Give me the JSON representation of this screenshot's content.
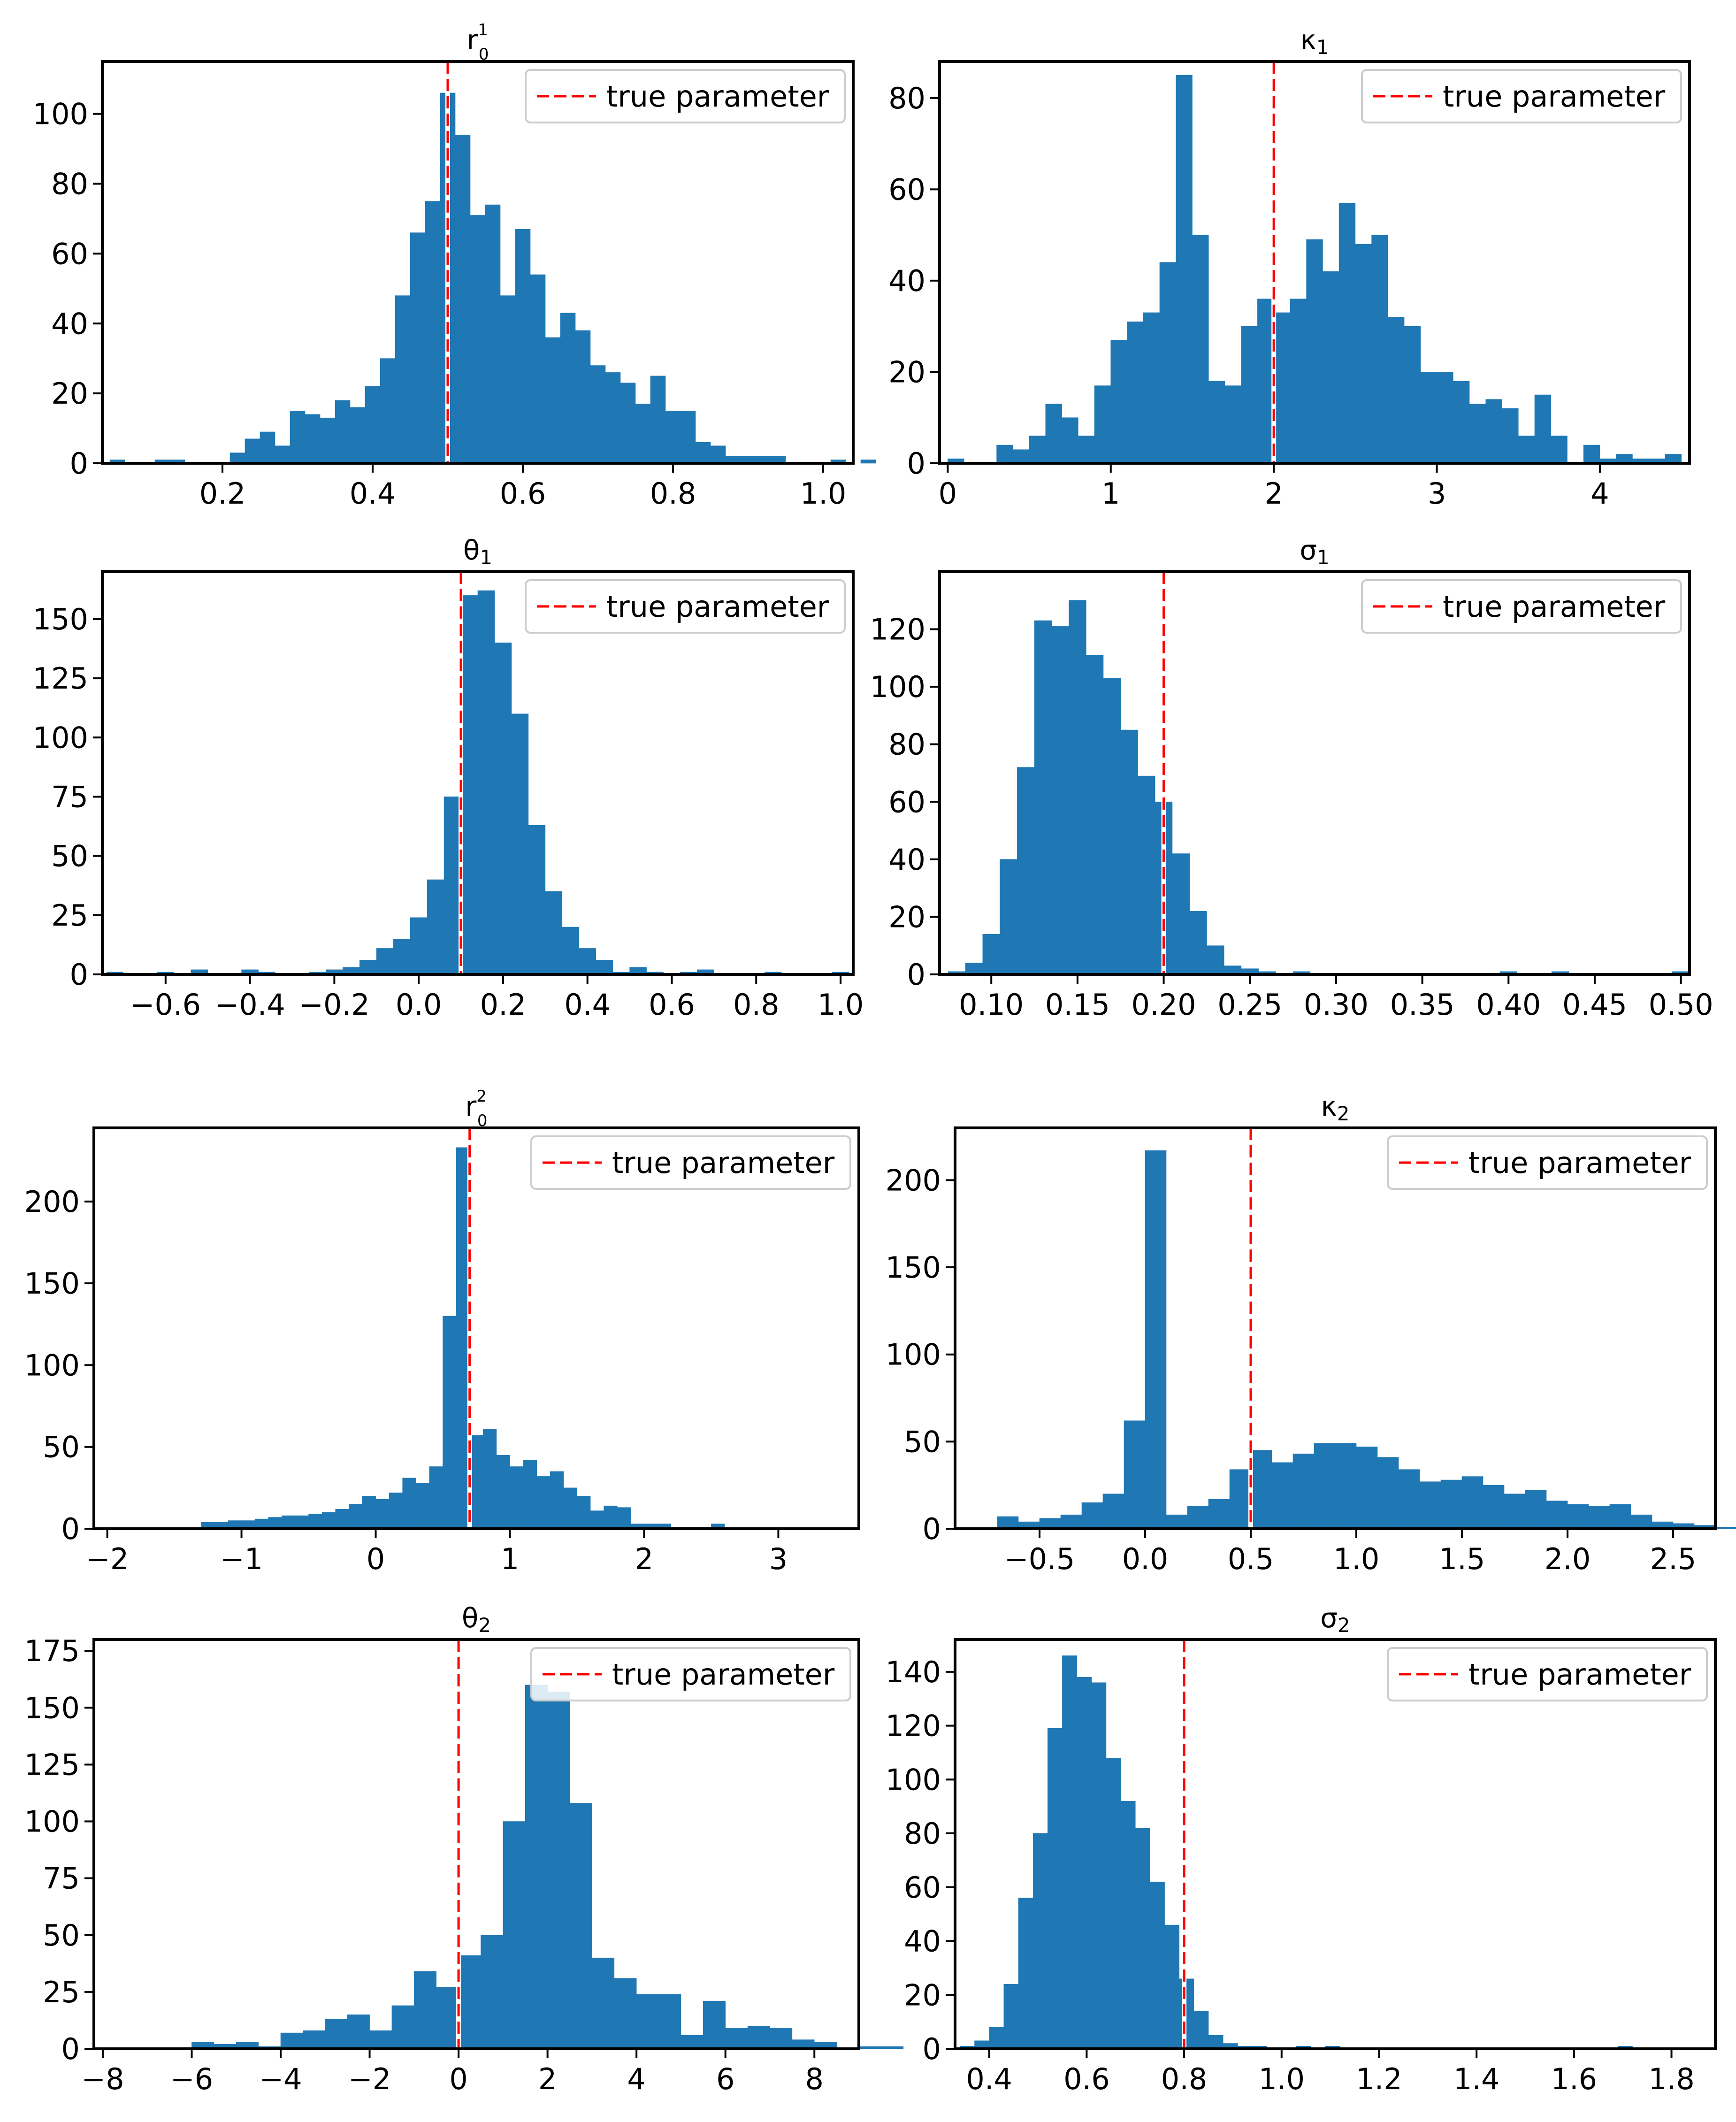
{
  "figure": {
    "colors": {
      "bar": "#1f77b4",
      "true_line": "#ff0000",
      "axes": "#000000",
      "background": "#ffffff"
    }
  },
  "chart_data": [
    {
      "id": "r0_1",
      "type": "bar",
      "title": "r",
      "title_sup": "1",
      "title_sub": "0",
      "xlabel": "",
      "ylabel": "",
      "xlim": [
        0.04,
        1.04
      ],
      "ylim": [
        0,
        115
      ],
      "xticks": [
        0.2,
        0.4,
        0.6,
        0.8,
        1.0
      ],
      "xtick_labels": [
        "0.2",
        "0.4",
        "0.6",
        "0.8",
        "1.0"
      ],
      "yticks": [
        0,
        20,
        40,
        60,
        80,
        100
      ],
      "ytick_labels": [
        "0",
        "20",
        "40",
        "60",
        "80",
        "100"
      ],
      "bin_start": 0.05,
      "bin_width": 0.02,
      "values": [
        1,
        0,
        0,
        1,
        1,
        0,
        0,
        0,
        3,
        7,
        9,
        5,
        15,
        14,
        13,
        18,
        16,
        22,
        30,
        48,
        66,
        75,
        106,
        94,
        71,
        74,
        48,
        67,
        54,
        36,
        43,
        38,
        28,
        26,
        23,
        17,
        25,
        15,
        15,
        6,
        5,
        2,
        2,
        2,
        2,
        0,
        0,
        0,
        1,
        0,
        1
      ],
      "true_value": 0.5,
      "legend": {
        "label": "true parameter",
        "location": "upper right"
      }
    },
    {
      "id": "kappa_1",
      "type": "bar",
      "title": "κ",
      "title_sup": "",
      "title_sub": "1",
      "xlabel": "",
      "ylabel": "",
      "xlim": [
        -0.05,
        4.55
      ],
      "ylim": [
        0,
        88
      ],
      "xticks": [
        0,
        1,
        2,
        3,
        4
      ],
      "xtick_labels": [
        "0",
        "1",
        "2",
        "3",
        "4"
      ],
      "yticks": [
        0,
        20,
        40,
        60,
        80
      ],
      "ytick_labels": [
        "0",
        "20",
        "40",
        "60",
        "80"
      ],
      "bin_start": 0.0,
      "bin_width": 0.1,
      "values": [
        1,
        0,
        0,
        4,
        3,
        6,
        13,
        10,
        6,
        17,
        27,
        31,
        33,
        44,
        85,
        50,
        18,
        17,
        30,
        36,
        33,
        36,
        49,
        42,
        57,
        48,
        50,
        32,
        30,
        20,
        20,
        18,
        13,
        14,
        12,
        6,
        15,
        6,
        0,
        4,
        1,
        2,
        1,
        1,
        2,
        0
      ],
      "true_value": 2.0,
      "legend": {
        "label": "true parameter",
        "location": "upper right"
      }
    },
    {
      "id": "theta_1",
      "type": "bar",
      "title": "θ",
      "title_sup": "",
      "title_sub": "1",
      "xlabel": "",
      "ylabel": "",
      "xlim": [
        -0.75,
        1.03
      ],
      "ylim": [
        0,
        170
      ],
      "xticks": [
        -0.6,
        -0.4,
        -0.2,
        0.0,
        0.2,
        0.4,
        0.6,
        0.8,
        1.0
      ],
      "xtick_labels": [
        "−0.6",
        "−0.4",
        "−0.2",
        "0.0",
        "0.2",
        "0.4",
        "0.6",
        "0.8",
        "1.0"
      ],
      "yticks": [
        0,
        25,
        50,
        75,
        100,
        125,
        150
      ],
      "ytick_labels": [
        "0",
        "25",
        "50",
        "75",
        "100",
        "125",
        "150"
      ],
      "bin_start": -0.74,
      "bin_width": 0.04,
      "values": [
        1,
        0,
        0,
        1,
        0,
        2,
        0,
        0,
        2,
        1,
        0,
        0,
        1,
        2,
        3,
        6,
        11,
        15,
        24,
        40,
        75,
        160,
        162,
        140,
        110,
        63,
        35,
        20,
        11,
        6,
        1,
        3,
        1,
        0,
        1,
        2,
        0,
        0,
        0,
        1,
        0,
        0,
        0,
        1
      ],
      "true_value": 0.1,
      "legend": {
        "label": "true parameter",
        "location": "upper right"
      }
    },
    {
      "id": "sigma_1",
      "type": "bar",
      "title": "σ",
      "title_sup": "",
      "title_sub": "1",
      "xlabel": "",
      "ylabel": "",
      "xlim": [
        0.07,
        0.505
      ],
      "ylim": [
        0,
        140
      ],
      "xticks": [
        0.1,
        0.15,
        0.2,
        0.25,
        0.3,
        0.35,
        0.4,
        0.45,
        0.5
      ],
      "xtick_labels": [
        "0.10",
        "0.15",
        "0.20",
        "0.25",
        "0.30",
        "0.35",
        "0.40",
        "0.45",
        "0.50"
      ],
      "yticks": [
        0,
        20,
        40,
        60,
        80,
        100,
        120
      ],
      "ytick_labels": [
        "0",
        "20",
        "40",
        "60",
        "80",
        "100",
        "120"
      ],
      "bin_start": 0.075,
      "bin_width": 0.01,
      "values": [
        1,
        4,
        14,
        40,
        72,
        123,
        121,
        130,
        111,
        103,
        85,
        69,
        60,
        42,
        22,
        10,
        3,
        2,
        1,
        0,
        1,
        0,
        0,
        0,
        0,
        0,
        0,
        0,
        0,
        0,
        0,
        0,
        1,
        0,
        0,
        1,
        0,
        0,
        0,
        0,
        0,
        0,
        1
      ],
      "true_value": 0.2,
      "legend": {
        "label": "true parameter",
        "location": "upper right"
      }
    },
    {
      "id": "r0_2",
      "type": "bar",
      "title": "r",
      "title_sup": "2",
      "title_sub": "0",
      "xlabel": "",
      "ylabel": "",
      "xlim": [
        -2.1,
        3.6
      ],
      "ylim": [
        0,
        245
      ],
      "xticks": [
        -2,
        -1,
        0,
        1,
        2,
        3
      ],
      "xtick_labels": [
        "−2",
        "−1",
        "0",
        "1",
        "2",
        "3"
      ],
      "yticks": [
        0,
        50,
        100,
        150,
        200
      ],
      "ytick_labels": [
        "0",
        "50",
        "100",
        "150",
        "200"
      ],
      "bin_start": -1.3,
      "bin_width": 0.1,
      "values": [
        4,
        4,
        5,
        5,
        6,
        7,
        8,
        8,
        9,
        10,
        12,
        15,
        20,
        18,
        22,
        31,
        28,
        38,
        130,
        233,
        57,
        61,
        45,
        38,
        42,
        32,
        35,
        25,
        20,
        11,
        14,
        13,
        3,
        3,
        3,
        1,
        1,
        1,
        3
      ],
      "true_value": 0.7,
      "legend": {
        "label": "true parameter",
        "location": "upper right"
      }
    },
    {
      "id": "kappa_2",
      "type": "bar",
      "title": "κ",
      "title_sup": "",
      "title_sub": "2",
      "xlabel": "",
      "ylabel": "",
      "xlim": [
        -0.9,
        2.7
      ],
      "ylim": [
        0,
        230
      ],
      "xticks": [
        -0.5,
        0.0,
        0.5,
        1.0,
        1.5,
        2.0,
        2.5
      ],
      "xtick_labels": [
        "−0.5",
        "0.0",
        "0.5",
        "1.0",
        "1.5",
        "2.0",
        "2.5"
      ],
      "yticks": [
        0,
        50,
        100,
        150,
        200
      ],
      "ytick_labels": [
        "0",
        "50",
        "100",
        "150",
        "200"
      ],
      "bin_start": -0.7,
      "bin_width": 0.1,
      "values": [
        7,
        4,
        6,
        8,
        15,
        20,
        62,
        217,
        8,
        13,
        17,
        34,
        45,
        38,
        43,
        49,
        49,
        47,
        41,
        34,
        27,
        28,
        30,
        25,
        20,
        22,
        16,
        14,
        13,
        14,
        8,
        4,
        3,
        2,
        1
      ],
      "true_value": 0.5,
      "legend": {
        "label": "true parameter",
        "location": "upper right"
      }
    },
    {
      "id": "theta_2",
      "type": "bar",
      "title": "θ",
      "title_sup": "",
      "title_sub": "2",
      "xlabel": "",
      "ylabel": "",
      "xlim": [
        -8.2,
        9.0
      ],
      "ylim": [
        0,
        180
      ],
      "xticks": [
        -8,
        -6,
        -4,
        -2,
        0,
        2,
        4,
        6,
        8
      ],
      "xtick_labels": [
        "−8",
        "−6",
        "−4",
        "−2",
        "0",
        "2",
        "4",
        "6",
        "8"
      ],
      "yticks": [
        0,
        25,
        50,
        75,
        100,
        125,
        150,
        175
      ],
      "ytick_labels": [
        "0",
        "25",
        "50",
        "75",
        "100",
        "125",
        "150",
        "175"
      ],
      "bin_start": -6.0,
      "bin_width": 0.5,
      "values": [
        3,
        2,
        3,
        1,
        7,
        8,
        13,
        15,
        8,
        19,
        34,
        27,
        41,
        50,
        100,
        160,
        157,
        108,
        40,
        31,
        24,
        24,
        6,
        21,
        9,
        10,
        9,
        4,
        3,
        0,
        1,
        1
      ],
      "true_value": 0.0,
      "legend": {
        "label": "true parameter",
        "location": "upper right"
      }
    },
    {
      "id": "sigma_2",
      "type": "bar",
      "title": "σ",
      "title_sup": "",
      "title_sub": "2",
      "xlabel": "",
      "ylabel": "",
      "xlim": [
        0.33,
        1.89
      ],
      "ylim": [
        0,
        152
      ],
      "xticks": [
        0.4,
        0.6,
        0.8,
        1.0,
        1.2,
        1.4,
        1.6,
        1.8
      ],
      "xtick_labels": [
        "0.4",
        "0.6",
        "0.8",
        "1.0",
        "1.2",
        "1.4",
        "1.6",
        "1.8"
      ],
      "yticks": [
        0,
        20,
        40,
        60,
        80,
        100,
        120,
        140
      ],
      "ytick_labels": [
        "0",
        "20",
        "40",
        "60",
        "80",
        "100",
        "120",
        "140"
      ],
      "bin_start": 0.34,
      "bin_width": 0.03,
      "values": [
        1,
        3,
        8,
        24,
        56,
        80,
        119,
        146,
        138,
        136,
        108,
        92,
        82,
        62,
        46,
        26,
        14,
        5,
        2,
        1,
        1,
        0,
        0,
        1,
        0,
        1,
        0,
        0,
        0,
        0,
        0,
        0,
        0,
        0,
        0,
        0,
        0,
        0,
        0,
        0,
        0,
        0,
        0,
        0,
        0,
        1,
        0,
        0,
        0,
        0,
        0,
        0
      ],
      "true_value": 0.8,
      "legend": {
        "label": "true parameter",
        "location": "upper right"
      }
    }
  ]
}
